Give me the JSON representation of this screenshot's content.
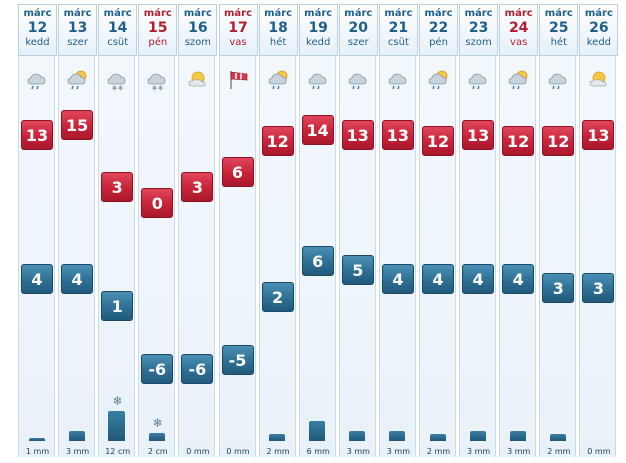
{
  "days": [
    {
      "month": "márc",
      "day": "12",
      "weekday": "kedd",
      "weekend": false,
      "icon": "rain-cloud-icon",
      "tmax": 13,
      "tmin": 4,
      "precip": "1 mm",
      "precip_amount": 1,
      "snow": false
    },
    {
      "month": "márc",
      "day": "13",
      "weekday": "szer",
      "weekend": false,
      "icon": "sun-cloud-rain-icon",
      "tmax": 15,
      "tmin": 4,
      "precip": "3 mm",
      "precip_amount": 3,
      "snow": false
    },
    {
      "month": "márc",
      "day": "14",
      "weekday": "csüt",
      "weekend": false,
      "icon": "snow-cloud-icon",
      "tmax": 3,
      "tmin": 1,
      "precip": "12 cm",
      "precip_amount": 12,
      "snow": true
    },
    {
      "month": "márc",
      "day": "15",
      "weekday": "pén",
      "weekend": true,
      "icon": "snow-cloud-icon",
      "tmax": 0,
      "tmin": -6,
      "precip": "2 cm",
      "precip_amount": 2,
      "snow": true
    },
    {
      "month": "márc",
      "day": "16",
      "weekday": "szom",
      "weekend": false,
      "icon": "sun-cloud-icon",
      "tmax": 3,
      "tmin": -6,
      "precip": "0 mm",
      "precip_amount": 0,
      "snow": false
    },
    {
      "month": "márc",
      "day": "17",
      "weekday": "vas",
      "weekend": true,
      "icon": "wind-flag-icon",
      "tmax": 6,
      "tmin": -5,
      "precip": "0 mm",
      "precip_amount": 0,
      "snow": false
    },
    {
      "month": "márc",
      "day": "18",
      "weekday": "hét",
      "weekend": false,
      "icon": "sun-cloud-rain-icon",
      "tmax": 12,
      "tmin": 2,
      "precip": "2 mm",
      "precip_amount": 2,
      "snow": false
    },
    {
      "month": "márc",
      "day": "19",
      "weekday": "kedd",
      "weekend": false,
      "icon": "rain-cloud-icon",
      "tmax": 14,
      "tmin": 6,
      "precip": "6 mm",
      "precip_amount": 6,
      "snow": false
    },
    {
      "month": "márc",
      "day": "20",
      "weekday": "szer",
      "weekend": false,
      "icon": "rain-cloud-icon",
      "tmax": 13,
      "tmin": 5,
      "precip": "3 mm",
      "precip_amount": 3,
      "snow": false
    },
    {
      "month": "márc",
      "day": "21",
      "weekday": "csüt",
      "weekend": false,
      "icon": "rain-cloud-icon",
      "tmax": 13,
      "tmin": 4,
      "precip": "3 mm",
      "precip_amount": 3,
      "snow": false
    },
    {
      "month": "márc",
      "day": "22",
      "weekday": "pén",
      "weekend": false,
      "icon": "sun-cloud-rain-icon",
      "tmax": 12,
      "tmin": 4,
      "precip": "2 mm",
      "precip_amount": 2,
      "snow": false
    },
    {
      "month": "márc",
      "day": "23",
      "weekday": "szom",
      "weekend": false,
      "icon": "rain-cloud-icon",
      "tmax": 13,
      "tmin": 4,
      "precip": "3 mm",
      "precip_amount": 3,
      "snow": false
    },
    {
      "month": "márc",
      "day": "24",
      "weekday": "vas",
      "weekend": true,
      "icon": "sun-cloud-rain-icon",
      "tmax": 12,
      "tmin": 4,
      "precip": "3 mm",
      "precip_amount": 3,
      "snow": false
    },
    {
      "month": "márc",
      "day": "25",
      "weekday": "hét",
      "weekend": false,
      "icon": "rain-cloud-icon",
      "tmax": 12,
      "tmin": 3,
      "precip": "2 mm",
      "precip_amount": 2,
      "snow": false
    },
    {
      "month": "márc",
      "day": "26",
      "weekday": "kedd",
      "weekend": false,
      "icon": "sun-cloud-icon",
      "tmax": 13,
      "tmin": 3,
      "precip": "0 mm",
      "precip_amount": 0,
      "snow": false
    }
  ],
  "colors": {
    "max": "#c72238",
    "min": "#2e6f94",
    "weekend_text": "#b01e2f",
    "weekday_text": "#1f5f8b"
  }
}
